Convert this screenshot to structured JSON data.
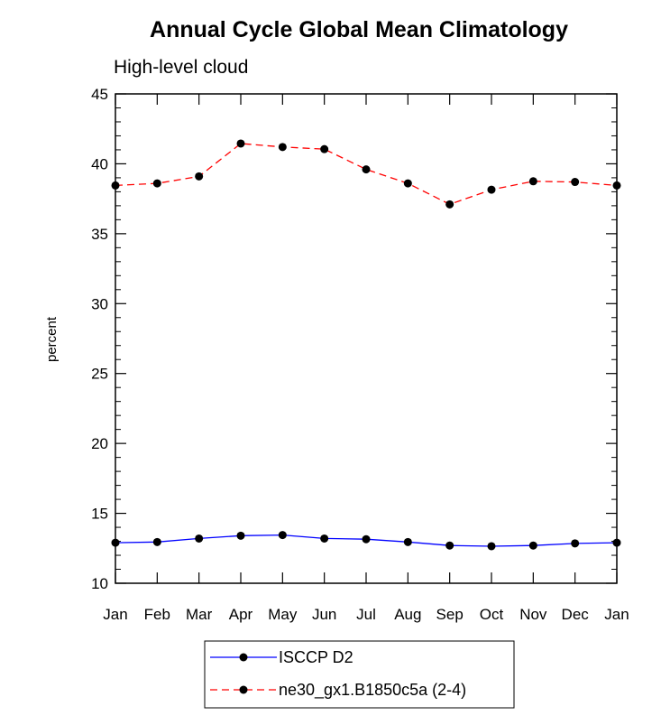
{
  "chart_data": {
    "type": "line",
    "title": "Annual Cycle Global Mean Climatology",
    "subtitle": "High-level cloud",
    "xlabel": "",
    "ylabel": "percent",
    "ylim": [
      10,
      45
    ],
    "yticks": [
      "10",
      "15",
      "20",
      "25",
      "30",
      "35",
      "40",
      "45"
    ],
    "categories": [
      "Jan",
      "Feb",
      "Mar",
      "Apr",
      "May",
      "Jun",
      "Jul",
      "Aug",
      "Sep",
      "Oct",
      "Nov",
      "Dec",
      "Jan"
    ],
    "series": [
      {
        "name": "ISCCP D2",
        "color": "#0000ff",
        "style": "solid",
        "values": [
          12.9,
          12.95,
          13.2,
          13.4,
          13.45,
          13.2,
          13.15,
          12.95,
          12.7,
          12.65,
          12.7,
          12.85,
          12.9
        ]
      },
      {
        "name": "ne30_gx1.B1850c5a (2-4)",
        "color": "#ff0000",
        "style": "dashed",
        "values": [
          38.45,
          38.6,
          39.1,
          41.45,
          41.2,
          41.05,
          39.6,
          38.6,
          37.1,
          38.15,
          38.75,
          38.7,
          38.45
        ]
      }
    ],
    "legend": "bottom-center",
    "grid": false
  }
}
